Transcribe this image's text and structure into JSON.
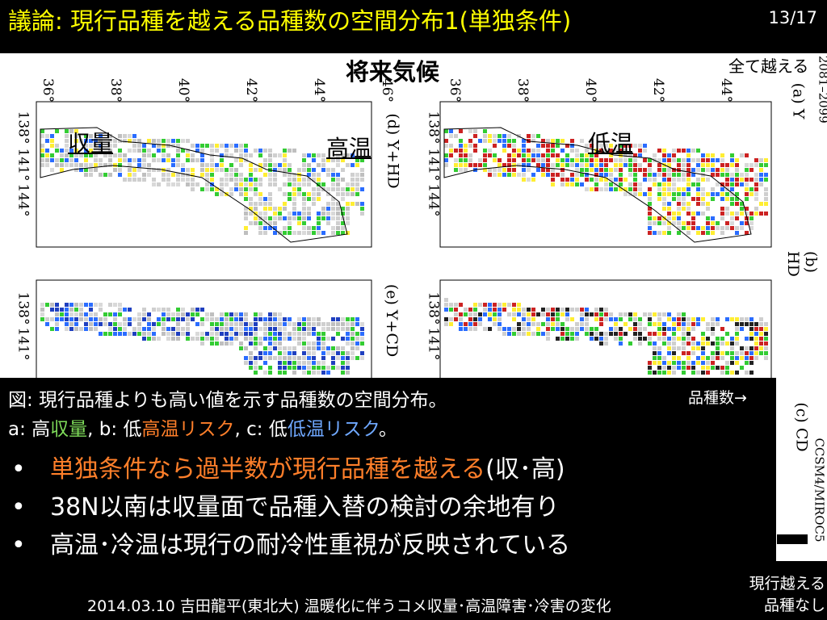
{
  "slide": {
    "title": "議論: 現行品種を越える品種数の空間分布1(単独条件)",
    "page_number": "13/17"
  },
  "figure": {
    "map_title": "将来気候",
    "legend_top": "全て越える",
    "panel_labels": {
      "d": "(d) Y+HD",
      "e": "(e) Y+CD",
      "a": "(a) Y",
      "b": "(b) HD",
      "c": "(c) CD"
    },
    "overlay_labels": {
      "yield": "収量",
      "high_temp": "高温",
      "low_temp": "低温"
    },
    "lat_ticks": [
      "36°",
      "38°",
      "40°",
      "42°",
      "44°",
      "46°"
    ],
    "lon_ticks": [
      "138°",
      "141°",
      "144°"
    ],
    "side_text_top": "Fut. 2081–2099",
    "side_text_bottom": "CCSM4/MIROC5"
  },
  "caption": {
    "line1": "図: 現行品種よりも高い値を示す品種数の空間分布。",
    "line2_prefix": "a: 高",
    "line2_yield": "収量",
    "line2_mid1": ", b: 低",
    "line2_heat": "高温リスク",
    "line2_mid2": ", c: 低",
    "line2_cold": "低温リスク",
    "line2_suffix": "。",
    "count_label": "品種数→"
  },
  "bullets": [
    {
      "marker": "•",
      "text_colored": "単独条件なら過半数が現行品種を越える",
      "text_plain": "(収･高)"
    },
    {
      "marker": "•",
      "text": "38N以南は収量面で品種入替の検討の余地有り"
    },
    {
      "marker": "•",
      "text": "高温･冷温は現行の耐冷性重視が反映されている"
    }
  ],
  "footer": {
    "text": "2014.03.10 吉田龍平(東北大) 温暖化に伴うコメ収量･高温障害･冷害の変化",
    "legend_bottom_line1": "現行越える",
    "legend_bottom_line2": "品種なし"
  },
  "colors": {
    "title": "#ffff00",
    "yield_green": "#7fdc5a",
    "heat_orange": "#ff7f2a",
    "cold_blue": "#6fa8ff"
  }
}
